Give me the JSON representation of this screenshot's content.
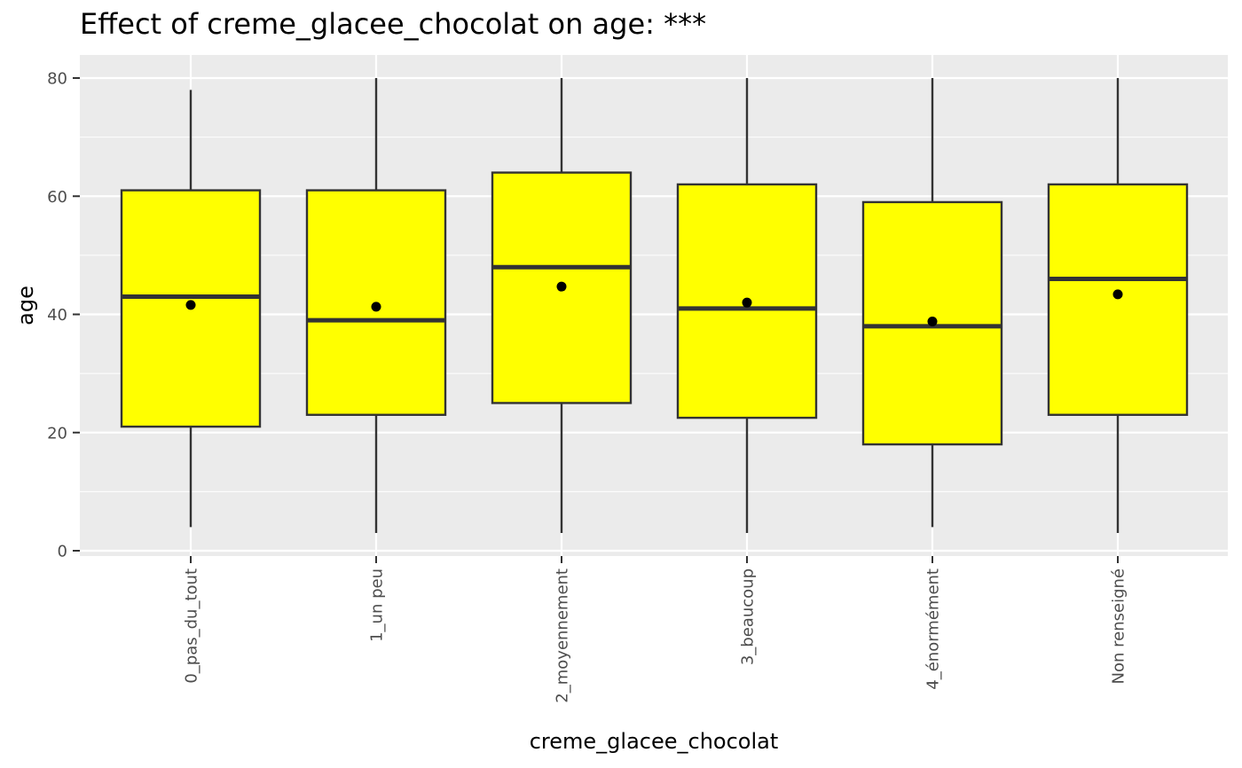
{
  "chart_data": {
    "type": "boxplot",
    "title": "Effect of creme_glacee_chocolat on age: ***",
    "xlabel": "creme_glacee_chocolat",
    "ylabel": "age",
    "ylim": [
      0,
      80
    ],
    "yticks": [
      0,
      20,
      40,
      60,
      80
    ],
    "categories": [
      "0_pas_du_tout",
      "1_un peu",
      "2_moyennement",
      "3_beaucoup",
      "4_énormément",
      "Non renseigné"
    ],
    "boxes": [
      {
        "whisker_low": 4,
        "q1": 21,
        "median": 43,
        "q3": 61,
        "whisker_high": 78,
        "mean": 41.6
      },
      {
        "whisker_low": 3,
        "q1": 23,
        "median": 39,
        "q3": 61,
        "whisker_high": 80,
        "mean": 41.3
      },
      {
        "whisker_low": 3,
        "q1": 25,
        "median": 48,
        "q3": 64,
        "whisker_high": 80,
        "mean": 44.7
      },
      {
        "whisker_low": 3,
        "q1": 22.5,
        "median": 41,
        "q3": 62,
        "whisker_high": 80,
        "mean": 42.0
      },
      {
        "whisker_low": 4,
        "q1": 18,
        "median": 38,
        "q3": 59,
        "whisker_high": 80,
        "mean": 38.8
      },
      {
        "whisker_low": 3,
        "q1": 23,
        "median": 46,
        "q3": 62,
        "whisker_high": 80,
        "mean": 43.4
      }
    ],
    "box_fill": "#ffff00",
    "panel_background": "#ebebeb",
    "grid": true,
    "legend": "none"
  }
}
